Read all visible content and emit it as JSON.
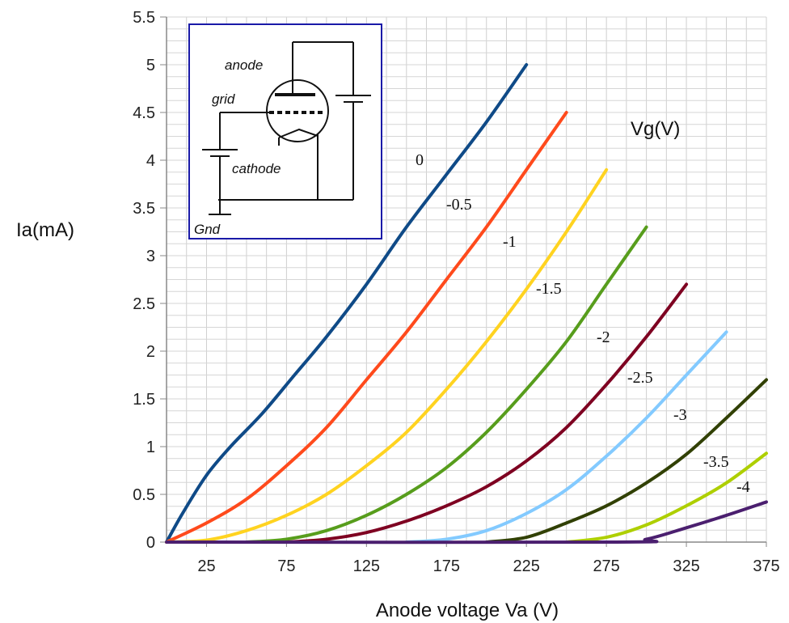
{
  "chart_data": {
    "type": "line",
    "xlabel": "Anode voltage Va (V)",
    "ylabel": "Ia(mA)",
    "legend_title": "Vg(V)",
    "xlim": [
      0,
      375
    ],
    "ylim": [
      0,
      5.5
    ],
    "x_ticks": [
      25,
      75,
      125,
      175,
      225,
      275,
      325,
      375
    ],
    "y_ticks": [
      0,
      0.5,
      1,
      1.5,
      2,
      2.5,
      3,
      3.5,
      4,
      4.5,
      5,
      5.5
    ],
    "y_tick_labels": [
      "0",
      "0.5",
      "1",
      "1.5",
      "2",
      "2.5",
      "3",
      "3.5",
      "4",
      "4.5",
      "5",
      "5.5"
    ],
    "grid": true,
    "series": [
      {
        "name": "0",
        "color": "#0f4a87",
        "x": [
          0,
          10,
          25,
          40,
          60,
          80,
          100,
          125,
          150,
          175,
          200,
          225
        ],
        "y": [
          0,
          0.3,
          0.7,
          1.0,
          1.35,
          1.75,
          2.15,
          2.7,
          3.3,
          3.85,
          4.4,
          5.0
        ]
      },
      {
        "name": "-0.5",
        "color": "#ff4a1c",
        "x": [
          0,
          25,
          50,
          75,
          100,
          125,
          150,
          175,
          200,
          225,
          250
        ],
        "y": [
          0,
          0.2,
          0.45,
          0.8,
          1.2,
          1.7,
          2.2,
          2.75,
          3.3,
          3.9,
          4.5
        ]
      },
      {
        "name": "-1",
        "color": "#ffd320",
        "x": [
          0,
          25,
          50,
          75,
          100,
          125,
          150,
          175,
          200,
          225,
          250,
          275
        ],
        "y": [
          0,
          0.02,
          0.12,
          0.28,
          0.5,
          0.8,
          1.15,
          1.6,
          2.1,
          2.65,
          3.25,
          3.9
        ]
      },
      {
        "name": "-1.5",
        "color": "#579d1c",
        "x": [
          50,
          75,
          100,
          125,
          150,
          175,
          200,
          225,
          250,
          275,
          300
        ],
        "y": [
          0,
          0.03,
          0.12,
          0.28,
          0.5,
          0.78,
          1.15,
          1.6,
          2.1,
          2.7,
          3.3
        ]
      },
      {
        "name": "-2",
        "color": "#7e0021",
        "x": [
          75,
          100,
          125,
          150,
          175,
          200,
          225,
          250,
          275,
          300,
          325
        ],
        "y": [
          0,
          0.03,
          0.1,
          0.22,
          0.38,
          0.58,
          0.85,
          1.2,
          1.65,
          2.15,
          2.7
        ]
      },
      {
        "name": "-2.5",
        "color": "#83caff",
        "x": [
          150,
          175,
          200,
          225,
          250,
          275,
          300,
          325,
          350
        ],
        "y": [
          0,
          0.03,
          0.12,
          0.3,
          0.55,
          0.9,
          1.3,
          1.75,
          2.2
        ]
      },
      {
        "name": "-3",
        "color": "#314004",
        "x": [
          200,
          225,
          250,
          275,
          300,
          325,
          350,
          375
        ],
        "y": [
          0,
          0.05,
          0.2,
          0.38,
          0.62,
          0.92,
          1.3,
          1.7
        ]
      },
      {
        "name": "-3.5",
        "color": "#aecf00",
        "x": [
          250,
          275,
          300,
          325,
          350,
          375
        ],
        "y": [
          0,
          0.05,
          0.18,
          0.38,
          0.62,
          0.93
        ]
      },
      {
        "name": "-4",
        "color": "#4b1f6f",
        "x": [
          0,
          280,
          300,
          325,
          350,
          375
        ],
        "y": [
          0,
          0,
          0.03,
          0.15,
          0.28,
          0.42
        ]
      }
    ]
  },
  "inset": {
    "labels": {
      "anode": "anode",
      "grid": "grid",
      "cathode": "cathode",
      "gnd": "Gnd"
    },
    "border_color": "#1a1aa8"
  }
}
